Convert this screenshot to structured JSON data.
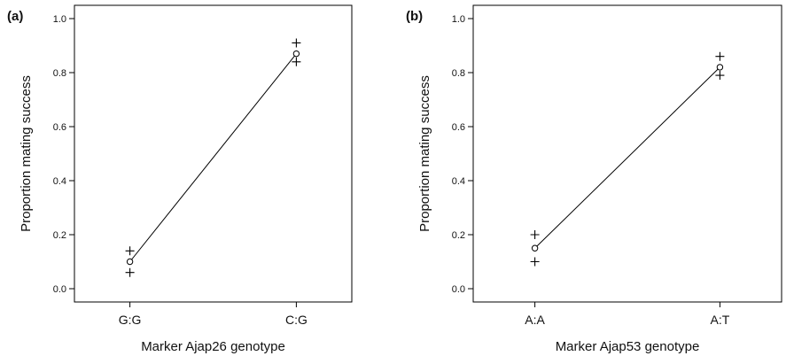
{
  "chart_data": [
    {
      "type": "line",
      "panel_label": "(a)",
      "xlabel": "Marker Ajap26 genotype",
      "ylabel": "Proportion mating success",
      "categories": [
        "G:G",
        "C:G"
      ],
      "ylim": [
        0.0,
        1.0
      ],
      "yticks": [
        "0.0",
        "0.2",
        "0.4",
        "0.6",
        "0.8",
        "1.0"
      ],
      "series": [
        {
          "values": [
            0.1,
            0.87
          ],
          "marker": "circle",
          "line": true
        },
        {
          "values": [
            0.14,
            0.91
          ],
          "marker": "plus",
          "line": false
        },
        {
          "values": [
            0.06,
            0.84
          ],
          "marker": "plus",
          "line": false
        }
      ],
      "grid": false
    },
    {
      "type": "line",
      "panel_label": "(b)",
      "xlabel": "Marker Ajap53 genotype",
      "ylabel": "Proportion mating success",
      "categories": [
        "A:A",
        "A:T"
      ],
      "ylim": [
        0.0,
        1.0
      ],
      "yticks": [
        "0.0",
        "0.2",
        "0.4",
        "0.6",
        "0.8",
        "1.0"
      ],
      "series": [
        {
          "values": [
            0.15,
            0.82
          ],
          "marker": "circle",
          "line": true
        },
        {
          "values": [
            0.2,
            0.86
          ],
          "marker": "plus",
          "line": false
        },
        {
          "values": [
            0.1,
            0.79
          ],
          "marker": "plus",
          "line": false
        }
      ],
      "grid": false
    }
  ]
}
